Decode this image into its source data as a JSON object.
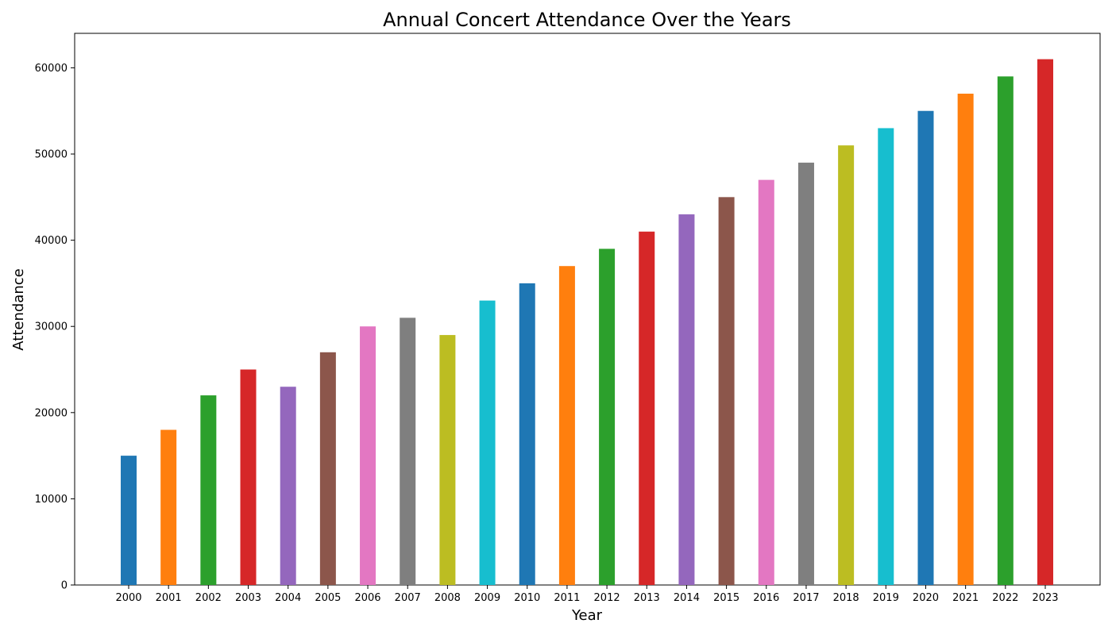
{
  "chart_data": {
    "type": "bar",
    "title": "Annual Concert Attendance Over the Years",
    "xlabel": "Year",
    "ylabel": "Attendance",
    "categories": [
      "2000",
      "2001",
      "2002",
      "2003",
      "2004",
      "2005",
      "2006",
      "2007",
      "2008",
      "2009",
      "2010",
      "2011",
      "2012",
      "2013",
      "2014",
      "2015",
      "2016",
      "2017",
      "2018",
      "2019",
      "2020",
      "2021",
      "2022",
      "2023"
    ],
    "values": [
      15000,
      18000,
      22000,
      25000,
      23000,
      27000,
      30000,
      31000,
      29000,
      33000,
      35000,
      37000,
      39000,
      41000,
      43000,
      45000,
      47000,
      49000,
      51000,
      53000,
      55000,
      57000,
      59000,
      61000
    ],
    "colors": [
      "#1f77b4",
      "#ff7f0e",
      "#2ca02c",
      "#d62728",
      "#9467bd",
      "#8c564b",
      "#e377c2",
      "#7f7f7f",
      "#bcbd22",
      "#17becf",
      "#1f77b4",
      "#ff7f0e",
      "#2ca02c",
      "#d62728",
      "#9467bd",
      "#8c564b",
      "#e377c2",
      "#7f7f7f",
      "#bcbd22",
      "#17becf",
      "#1f77b4",
      "#ff7f0e",
      "#2ca02c",
      "#d62728"
    ],
    "ylim": [
      0,
      64000
    ],
    "yticks": [
      "0",
      "10000",
      "20000",
      "30000",
      "40000",
      "50000",
      "60000"
    ],
    "grid": false,
    "legend": false
  }
}
